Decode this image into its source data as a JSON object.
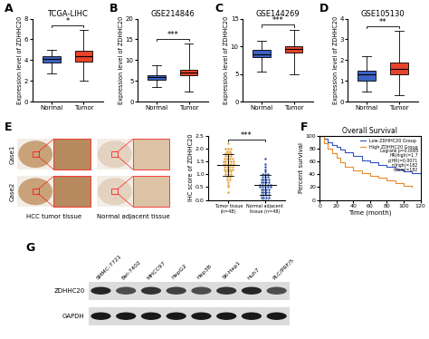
{
  "chart_data": [
    {
      "type": "box",
      "panel": "A",
      "title": "TCGA-LIHC",
      "y_label": "Expression level of ZDHHC20",
      "categories": [
        "Normal",
        "Tumor"
      ],
      "colors": [
        "#3b62c4",
        "#e8432b"
      ],
      "boxes": [
        {
          "min": 2.7,
          "q1": 3.8,
          "median": 4.1,
          "q3": 4.4,
          "max": 5.0
        },
        {
          "min": 2.0,
          "q1": 3.9,
          "median": 4.4,
          "q3": 4.9,
          "max": 6.9
        }
      ],
      "ylim": [
        0,
        8
      ],
      "yticks": [
        0,
        2,
        4,
        6,
        8
      ],
      "significance": "*"
    },
    {
      "type": "box",
      "panel": "B",
      "title": "GSE214846",
      "y_label": "Expression level of ZDHHC20",
      "categories": [
        "Normal",
        "Tumor"
      ],
      "colors": [
        "#3b62c4",
        "#e8432b"
      ],
      "boxes": [
        {
          "min": 3.5,
          "q1": 5.3,
          "median": 5.9,
          "q3": 6.3,
          "max": 8.8
        },
        {
          "min": 2.5,
          "q1": 6.3,
          "median": 7.0,
          "q3": 7.7,
          "max": 14.0
        }
      ],
      "ylim": [
        0,
        20
      ],
      "yticks": [
        0,
        5,
        10,
        15,
        20
      ],
      "significance": "***"
    },
    {
      "type": "box",
      "panel": "C",
      "title": "GSE144269",
      "y_label": "Expression level of ZDHHC20",
      "categories": [
        "Normal",
        "Tumor"
      ],
      "colors": [
        "#3b62c4",
        "#e8432b"
      ],
      "boxes": [
        {
          "min": 5.5,
          "q1": 8.0,
          "median": 8.6,
          "q3": 9.3,
          "max": 11.0
        },
        {
          "min": 5.0,
          "q1": 8.8,
          "median": 9.5,
          "q3": 10.0,
          "max": 13.0
        }
      ],
      "ylim": [
        0,
        15
      ],
      "yticks": [
        0,
        5,
        10,
        15
      ],
      "significance": "***"
    },
    {
      "type": "box",
      "panel": "D",
      "title": "GSE105130",
      "y_label": "Expression level of ZDHHC20",
      "categories": [
        "Normal",
        "Tumor"
      ],
      "colors": [
        "#3b62c4",
        "#e8432b"
      ],
      "boxes": [
        {
          "min": 0.5,
          "q1": 1.0,
          "median": 1.3,
          "q3": 1.5,
          "max": 2.2
        },
        {
          "min": 0.3,
          "q1": 1.3,
          "median": 1.6,
          "q3": 1.9,
          "max": 3.4
        }
      ],
      "ylim": [
        0,
        4
      ],
      "yticks": [
        0,
        1,
        2,
        3,
        4
      ],
      "significance": "**"
    },
    {
      "type": "scatter",
      "y_label": "IHC score of ZDHHC20",
      "categories": [
        "Tumor tissue\n(n=48)",
        "Normal adjacent\ntissue (n=48)"
      ],
      "colors": [
        "#e0a030",
        "#2a4fa8"
      ],
      "values": [
        [
          2.2,
          2.0,
          2.0,
          2.0,
          1.9,
          1.9,
          1.8,
          1.8,
          1.8,
          1.7,
          1.7,
          1.7,
          1.6,
          1.6,
          1.6,
          1.6,
          1.5,
          1.5,
          1.5,
          1.5,
          1.5,
          1.4,
          1.4,
          1.4,
          1.4,
          1.4,
          1.3,
          1.3,
          1.3,
          1.3,
          1.2,
          1.2,
          1.2,
          1.2,
          1.1,
          1.1,
          1.1,
          1.0,
          1.0,
          1.0,
          0.9,
          0.9,
          0.8,
          0.8,
          0.7,
          0.6,
          0.5,
          0.3
        ],
        [
          1.6,
          1.4,
          1.3,
          1.2,
          1.1,
          1.0,
          1.0,
          1.0,
          0.9,
          0.9,
          0.9,
          0.8,
          0.8,
          0.8,
          0.8,
          0.7,
          0.7,
          0.7,
          0.7,
          0.6,
          0.6,
          0.6,
          0.6,
          0.6,
          0.5,
          0.5,
          0.5,
          0.5,
          0.5,
          0.4,
          0.4,
          0.4,
          0.4,
          0.3,
          0.3,
          0.3,
          0.3,
          0.2,
          0.2,
          0.2,
          0.2,
          0.1,
          0.1,
          0.1,
          0.1,
          0.0,
          0.0,
          0.0
        ]
      ],
      "ylim": [
        0,
        2.5
      ],
      "yticks": [
        {
          "value": 0,
          "label": "0.0"
        },
        0.5,
        {
          "value": 1,
          "label": "1.0"
        },
        1.5,
        {
          "value": 2,
          "label": "2.0"
        },
        2.5
      ],
      "significance": "***"
    },
    {
      "type": "line",
      "panel": "F",
      "title": "Overall Survival",
      "x_label": "Time (month)",
      "y_label": "Percent survival",
      "series": [
        {
          "name": "Low ZDHHC20 Group",
          "color": "#3050c0",
          "x": [
            0,
            5,
            10,
            15,
            20,
            25,
            30,
            40,
            50,
            60,
            70,
            80,
            90,
            100,
            110,
            120
          ],
          "values": [
            100,
            95,
            90,
            86,
            82,
            78,
            74,
            68,
            62,
            58,
            55,
            52,
            48,
            45,
            42,
            40
          ]
        },
        {
          "name": "High ZDHHC20 Group",
          "color": "#e8892b",
          "x": [
            0,
            5,
            10,
            15,
            20,
            25,
            30,
            40,
            50,
            60,
            70,
            80,
            90,
            100,
            110
          ],
          "values": [
            100,
            88,
            80,
            72,
            65,
            58,
            52,
            46,
            42,
            38,
            35,
            30,
            26,
            22,
            20
          ]
        }
      ],
      "xlim": [
        0,
        120
      ],
      "xticks": [
        0,
        20,
        40,
        60,
        80,
        100,
        120
      ],
      "ylim": [
        0,
        100
      ],
      "yticks": [
        0,
        20,
        40,
        60,
        80,
        100
      ],
      "legend": "upper right",
      "annotations": [
        "Logrank p=0.0065",
        "HR(high)=1.7",
        "p(HR)=0.0071",
        "n(high)=182",
        "n(low)=182"
      ]
    }
  ],
  "ihc_images": {
    "panel": "E",
    "rows": [
      "Case1",
      "Case2"
    ],
    "columns": [
      "HCC tumor tissue",
      "Normal adjacent tissue"
    ]
  },
  "western_blot": {
    "panel": "G",
    "lanes": [
      "SMMC-7721",
      "Bel-7402",
      "MHCC97",
      "HepG2",
      "Hep3B",
      "SK-Hep1",
      "Huh7",
      "PLC/PRF/5"
    ],
    "rows": [
      {
        "name": "ZDHHC20",
        "intensity": [
          0.85,
          0.7,
          0.8,
          0.75,
          0.7,
          0.8,
          0.85,
          0.7
        ]
      },
      {
        "name": "GAPDH",
        "intensity": [
          0.9,
          0.9,
          0.9,
          0.9,
          0.9,
          0.9,
          0.9,
          0.9
        ]
      }
    ]
  }
}
